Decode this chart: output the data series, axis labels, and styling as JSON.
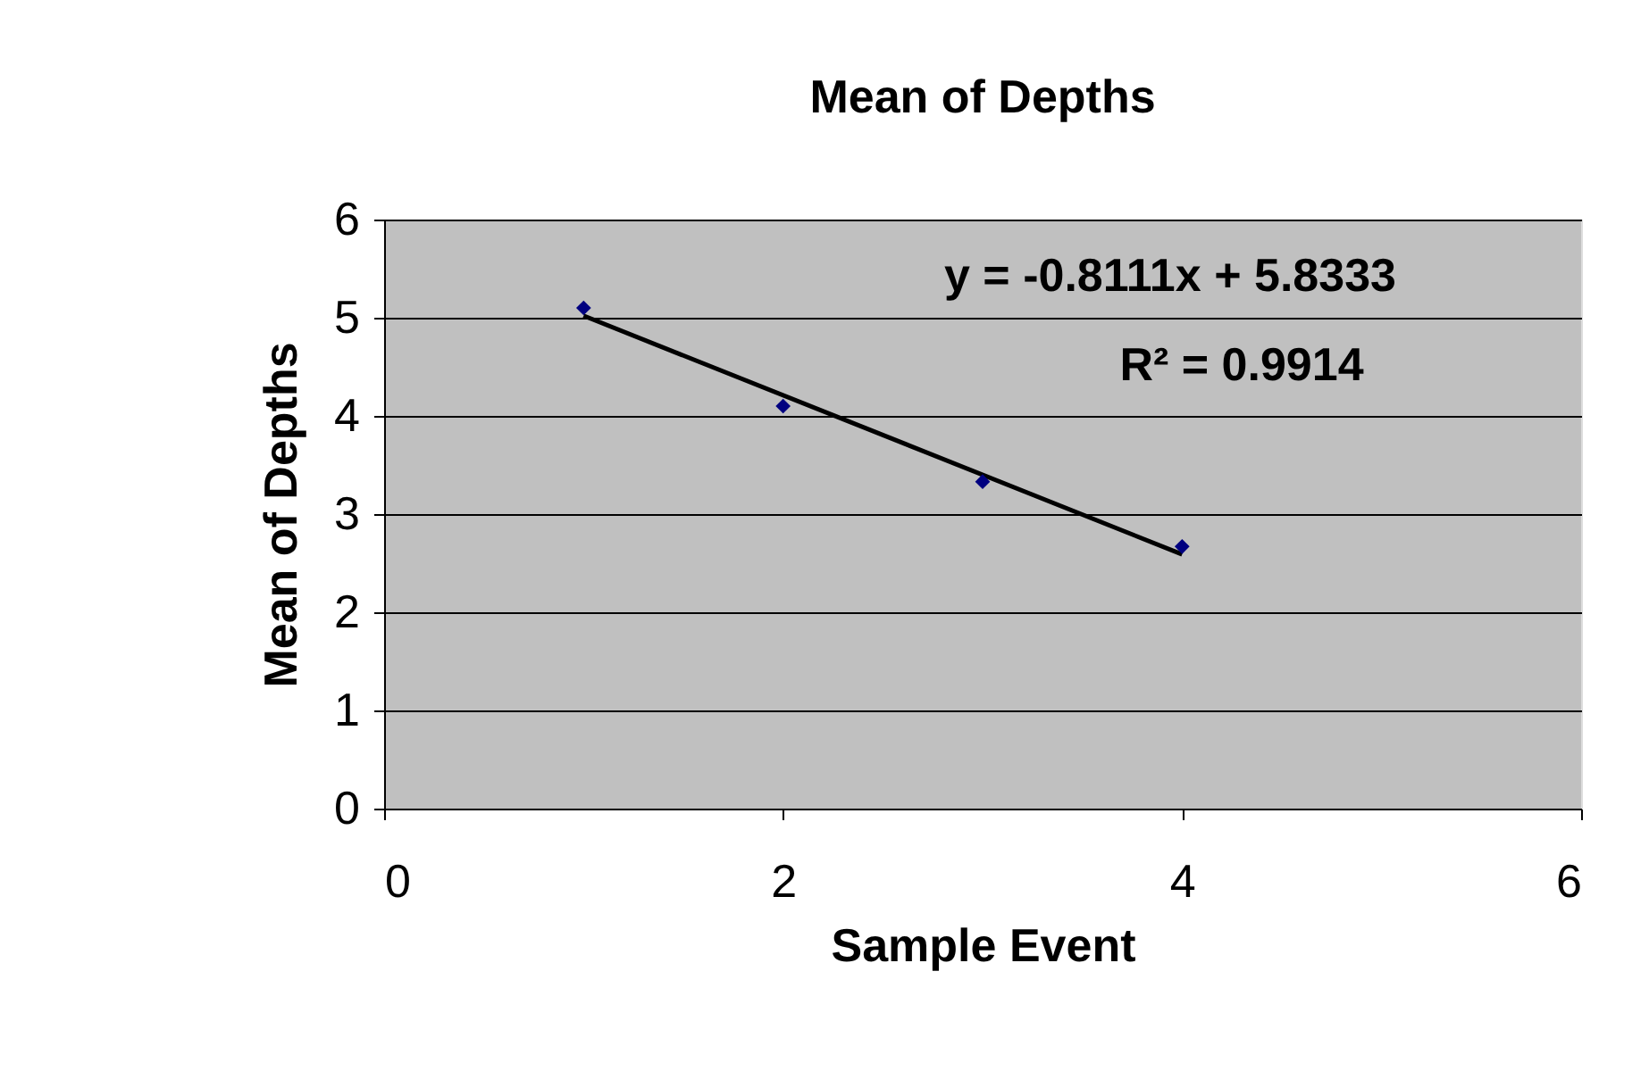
{
  "chart_data": {
    "type": "scatter",
    "title": "Mean of Depths",
    "xlabel": "Sample Event",
    "ylabel": "Mean of Depths",
    "series": [
      {
        "marker": "diamond",
        "color": "#000080",
        "x": [
          1,
          2,
          3,
          4
        ],
        "values": [
          5.1,
          4.1,
          3.33,
          2.67
        ]
      },
      {
        "type": "line",
        "color": "#000000",
        "x": [
          1,
          4
        ],
        "values": [
          5.02,
          2.59
        ]
      }
    ],
    "annotations": [
      "y = -0.8111x + 5.8333",
      "R² = 0.9914"
    ],
    "xlim": [
      0,
      6
    ],
    "xticks": [
      0,
      2,
      4,
      6
    ],
    "ylim": [
      0,
      6
    ],
    "yticks": [
      0,
      1,
      2,
      3,
      4,
      5,
      6
    ],
    "grid": "y"
  }
}
